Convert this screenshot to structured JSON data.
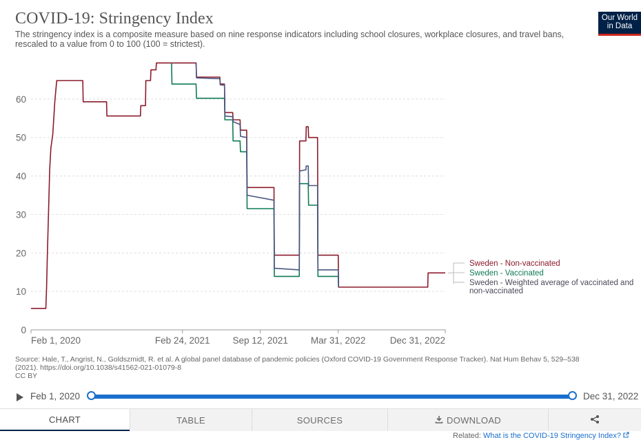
{
  "header": {
    "title": "COVID-19: Stringency Index",
    "subtitle": "The stringency index is a composite measure based on nine response indicators including school closures, workplace closures, and travel bans, rescaled to a value from 0 to 100 (100 = strictest).",
    "logo_line1": "Our World",
    "logo_line2": "in Data"
  },
  "source": {
    "line1": "Source: Hale, T., Angrist, N., Goldszmidt, R. et al. A global panel database of pandemic policies (Oxford COVID-19 Government Response Tracker). Nat Hum Behav 5, 529–538",
    "line2": "(2021). https://doi.org/10.1038/s41562-021-01079-8",
    "line3": "CC BY"
  },
  "timeline": {
    "start_label": "Feb 1, 2020",
    "end_label": "Dec 31, 2022",
    "start_fraction": 0,
    "end_fraction": 1
  },
  "tabs": {
    "chart": "CHART",
    "table": "TABLE",
    "sources": "SOURCES",
    "download": "DOWNLOAD"
  },
  "related": {
    "prefix": "Related: ",
    "link": "What is the COVID-19 Stringency Index?"
  },
  "colors": {
    "non_vaccinated": "#8b1a2a",
    "vaccinated": "#0f7a55",
    "weighted": "#4a5580",
    "axis": "#666666",
    "grid": "#dddddd",
    "brand_navy": "#002147",
    "brand_red": "#ce261e",
    "accent_blue": "#1a6fce"
  },
  "icons": {
    "play": "play-icon",
    "download": "download-icon",
    "share": "share-icon",
    "external_link": "external-link-icon"
  },
  "chart_data": {
    "type": "line",
    "x_is_date": true,
    "xlim": [
      "2020-02-01",
      "2022-12-31"
    ],
    "x_ticks": [
      {
        "date": "2020-02-01",
        "label": "Feb 1, 2020"
      },
      {
        "date": "2021-02-24",
        "label": "Feb 24, 2021"
      },
      {
        "date": "2021-09-12",
        "label": "Sep 12, 2021"
      },
      {
        "date": "2022-03-31",
        "label": "Mar 31, 2022"
      },
      {
        "date": "2022-12-31",
        "label": "Dec 31, 2022"
      }
    ],
    "ylim": [
      0,
      70
    ],
    "y_ticks": [
      0,
      10,
      20,
      30,
      40,
      50,
      60
    ],
    "grid": "horizontal dashed",
    "legend_placement": "right",
    "series": [
      {
        "name": "Sweden - Non-vaccinated",
        "color": "#8b1a2a",
        "points": [
          [
            "2020-02-01",
            5.56
          ],
          [
            "2020-03-10",
            5.56
          ],
          [
            "2020-03-12",
            11.1
          ],
          [
            "2020-03-14",
            19.4
          ],
          [
            "2020-03-17",
            30.6
          ],
          [
            "2020-03-20",
            41.7
          ],
          [
            "2020-03-23",
            47.2
          ],
          [
            "2020-03-28",
            50.9
          ],
          [
            "2020-04-02",
            59.3
          ],
          [
            "2020-04-07",
            64.8
          ],
          [
            "2020-06-13",
            64.8
          ],
          [
            "2020-06-14",
            59.3
          ],
          [
            "2020-08-13",
            59.3
          ],
          [
            "2020-08-14",
            55.6
          ],
          [
            "2020-11-08",
            55.6
          ],
          [
            "2020-11-09",
            58.3
          ],
          [
            "2020-11-21",
            58.3
          ],
          [
            "2020-11-22",
            64.8
          ],
          [
            "2020-12-04",
            64.8
          ],
          [
            "2020-12-05",
            67.6
          ],
          [
            "2020-12-18",
            67.6
          ],
          [
            "2020-12-19",
            69.4
          ],
          [
            "2021-03-31",
            69.4
          ],
          [
            "2021-04-01",
            65.7
          ],
          [
            "2021-05-31",
            65.7
          ],
          [
            "2021-06-01",
            63.9
          ],
          [
            "2021-06-12",
            63.9
          ],
          [
            "2021-06-13",
            56.5
          ],
          [
            "2021-07-03",
            56.5
          ],
          [
            "2021-07-04",
            54.6
          ],
          [
            "2021-07-22",
            54.6
          ],
          [
            "2021-07-23",
            51.9
          ],
          [
            "2021-08-08",
            51.9
          ],
          [
            "2021-08-09",
            37.0
          ],
          [
            "2021-10-17",
            37.0
          ],
          [
            "2021-10-18",
            19.4
          ],
          [
            "2021-12-21",
            19.4
          ],
          [
            "2021-12-22",
            49.1
          ],
          [
            "2022-01-07",
            49.1
          ],
          [
            "2022-01-08",
            52.8
          ],
          [
            "2022-01-13",
            52.8
          ],
          [
            "2022-01-14",
            50.0
          ],
          [
            "2022-02-06",
            50.0
          ],
          [
            "2022-02-07",
            19.4
          ],
          [
            "2022-03-31",
            19.4
          ],
          [
            "2022-04-01",
            11.1
          ],
          [
            "2022-11-16",
            11.1
          ],
          [
            "2022-11-17",
            14.8
          ],
          [
            "2022-12-31",
            14.8
          ]
        ]
      },
      {
        "name": "Sweden - Vaccinated",
        "color": "#0f7a55",
        "points": [
          [
            "2021-01-27",
            69.4
          ],
          [
            "2021-01-28",
            63.9
          ],
          [
            "2021-03-31",
            63.9
          ],
          [
            "2021-04-01",
            60.2
          ],
          [
            "2021-06-12",
            60.2
          ],
          [
            "2021-06-13",
            54.6
          ],
          [
            "2021-07-03",
            54.6
          ],
          [
            "2021-07-04",
            49.1
          ],
          [
            "2021-07-22",
            49.1
          ],
          [
            "2021-07-23",
            46.3
          ],
          [
            "2021-08-08",
            46.3
          ],
          [
            "2021-08-09",
            31.5
          ],
          [
            "2021-10-17",
            31.5
          ],
          [
            "2021-10-18",
            13.9
          ],
          [
            "2021-12-21",
            13.9
          ],
          [
            "2021-12-22",
            38.0
          ],
          [
            "2022-01-13",
            38.0
          ],
          [
            "2022-01-14",
            32.4
          ],
          [
            "2022-02-06",
            32.4
          ],
          [
            "2022-02-07",
            13.9
          ],
          [
            "2022-03-31",
            13.9
          ],
          [
            "2022-04-01",
            11.1
          ]
        ]
      },
      {
        "name": "Sweden - Weighted average of vaccinated and non-vaccinated",
        "color": "#4a5580",
        "points": [
          [
            "2021-03-31",
            69.4
          ],
          [
            "2021-04-01",
            65.5
          ],
          [
            "2021-05-31",
            65.3
          ],
          [
            "2021-06-01",
            63.7
          ],
          [
            "2021-06-12",
            63.6
          ],
          [
            "2021-06-13",
            55.6
          ],
          [
            "2021-07-03",
            55.4
          ],
          [
            "2021-07-04",
            54.1
          ],
          [
            "2021-07-22",
            53.4
          ],
          [
            "2021-07-23",
            50.3
          ],
          [
            "2021-08-08",
            50.0
          ],
          [
            "2021-08-09",
            35.0
          ],
          [
            "2021-10-17",
            33.7
          ],
          [
            "2021-10-18",
            16.0
          ],
          [
            "2021-12-21",
            15.6
          ],
          [
            "2021-12-22",
            41.3
          ],
          [
            "2022-01-07",
            41.6
          ],
          [
            "2022-01-08",
            42.6
          ],
          [
            "2022-01-13",
            42.6
          ],
          [
            "2022-01-14",
            37.5
          ],
          [
            "2022-02-06",
            37.5
          ],
          [
            "2022-02-07",
            15.6
          ],
          [
            "2022-03-31",
            15.6
          ],
          [
            "2022-04-01",
            11.1
          ]
        ]
      }
    ]
  }
}
